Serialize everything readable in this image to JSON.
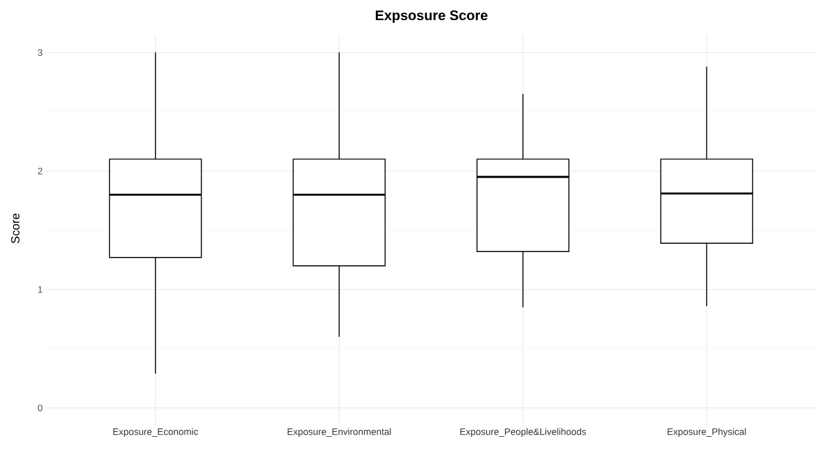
{
  "chart_data": {
    "type": "box",
    "title": "Expsosure Score",
    "ylabel": "Score",
    "categories": [
      "Exposure_Economic",
      "Exposure_Environmental",
      "Exposure_People&Livelihoods",
      "Exposure_Physical"
    ],
    "boxes": [
      {
        "low": 0.29,
        "q1": 1.27,
        "median": 1.8,
        "q3": 2.1,
        "high": 3.0
      },
      {
        "low": 0.6,
        "q1": 1.2,
        "median": 1.8,
        "q3": 2.1,
        "high": 3.0
      },
      {
        "low": 0.85,
        "q1": 1.32,
        "median": 1.95,
        "q3": 2.1,
        "high": 2.65
      },
      {
        "low": 0.86,
        "q1": 1.39,
        "median": 1.81,
        "q3": 2.1,
        "high": 2.88
      }
    ],
    "color": "#000000",
    "ylim": [
      -0.15,
      3.15
    ],
    "yticks": [
      0,
      1,
      2,
      3
    ],
    "grid": true
  }
}
